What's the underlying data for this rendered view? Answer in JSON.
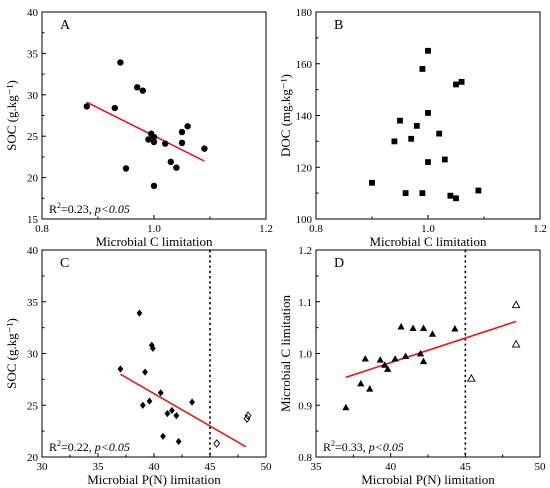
{
  "chart_data": [
    {
      "panel": "A",
      "type": "scatter",
      "xlabel": "Microbial C limitation",
      "ylabel": "SOC (g.kg⁻¹)",
      "xlim": [
        0.8,
        1.2
      ],
      "ylim": [
        15,
        40
      ],
      "xticks": [
        "0.8",
        "1.0",
        "1.2"
      ],
      "yticks": [
        "15",
        "20",
        "25",
        "30",
        "35",
        "40"
      ],
      "marker": "filled-circle",
      "points": [
        [
          0.88,
          28.6
        ],
        [
          0.93,
          28.4
        ],
        [
          0.94,
          33.9
        ],
        [
          0.95,
          21.1
        ],
        [
          0.97,
          30.9
        ],
        [
          0.98,
          30.5
        ],
        [
          0.99,
          24.6
        ],
        [
          0.995,
          25.3
        ],
        [
          1.0,
          24.9
        ],
        [
          1.0,
          24.3
        ],
        [
          1.0,
          19.0
        ],
        [
          1.02,
          24.1
        ],
        [
          1.03,
          21.9
        ],
        [
          1.04,
          21.2
        ],
        [
          1.05,
          24.2
        ],
        [
          1.05,
          25.5
        ],
        [
          1.06,
          26.2
        ],
        [
          1.09,
          23.5
        ]
      ],
      "fit": {
        "x": [
          0.88,
          1.09
        ],
        "y": [
          29.1,
          22.0
        ],
        "color": "#e41a1c"
      },
      "stat_r2": "0.23",
      "stat_p": "p<0.05"
    },
    {
      "panel": "B",
      "type": "scatter",
      "xlabel": "Microbial C limitation",
      "ylabel": "DOC (mg.kg⁻¹)",
      "xlim": [
        0.8,
        1.2
      ],
      "ylim": [
        100,
        180
      ],
      "xticks": [
        "0.8",
        "1.0",
        "1.2"
      ],
      "yticks": [
        "100",
        "120",
        "140",
        "160",
        "180"
      ],
      "marker": "filled-square",
      "points": [
        [
          0.9,
          114
        ],
        [
          0.94,
          130
        ],
        [
          0.95,
          138
        ],
        [
          0.96,
          110
        ],
        [
          0.97,
          131
        ],
        [
          0.98,
          136
        ],
        [
          0.99,
          110
        ],
        [
          0.99,
          158
        ],
        [
          1.0,
          122
        ],
        [
          1.0,
          141
        ],
        [
          1.0,
          165
        ],
        [
          1.02,
          133
        ],
        [
          1.03,
          123
        ],
        [
          1.04,
          109
        ],
        [
          1.05,
          108
        ],
        [
          1.05,
          152
        ],
        [
          1.06,
          153
        ],
        [
          1.09,
          111
        ]
      ]
    },
    {
      "panel": "C",
      "type": "scatter",
      "xlabel": "Microbial P(N) limitation",
      "ylabel": "SOC (g.kg⁻¹)",
      "xlim": [
        30,
        50
      ],
      "ylim": [
        20,
        40
      ],
      "xticks": [
        "30",
        "35",
        "40",
        "45",
        "50"
      ],
      "yticks": [
        "20",
        "25",
        "30",
        "35",
        "40"
      ],
      "marker": "filled-diamond",
      "points": [
        [
          37.0,
          28.5
        ],
        [
          38.7,
          33.9
        ],
        [
          39.0,
          25.0
        ],
        [
          39.2,
          28.2
        ],
        [
          39.6,
          25.4
        ],
        [
          39.8,
          30.8
        ],
        [
          39.9,
          30.5
        ],
        [
          40.6,
          26.2
        ],
        [
          40.8,
          22.0
        ],
        [
          41.2,
          24.2
        ],
        [
          41.6,
          24.5
        ],
        [
          42.0,
          24.0
        ],
        [
          42.2,
          21.5
        ],
        [
          43.4,
          25.3
        ]
      ],
      "open_points": [
        [
          45.6,
          21.3
        ],
        [
          48.3,
          23.7
        ],
        [
          48.4,
          24.0
        ]
      ],
      "fit": {
        "x": [
          37.0,
          48.2
        ],
        "y": [
          28.0,
          21.0
        ],
        "color": "#e41a1c"
      },
      "vline": 45,
      "stat_r2": "0.22",
      "stat_p": "p<0.05"
    },
    {
      "panel": "D",
      "type": "scatter",
      "xlabel": "Microbial P(N) limitation",
      "ylabel": "Microbial C limitation",
      "xlim": [
        35,
        50
      ],
      "ylim": [
        0.8,
        1.2
      ],
      "xticks": [
        "35",
        "40",
        "45",
        "50"
      ],
      "yticks": [
        "0.8",
        "0.9",
        "1.0",
        "1.1",
        "1.2"
      ],
      "marker": "filled-triangle",
      "points": [
        [
          37.0,
          0.896
        ],
        [
          38.0,
          0.942
        ],
        [
          38.3,
          0.99
        ],
        [
          38.6,
          0.932
        ],
        [
          39.3,
          0.988
        ],
        [
          39.6,
          0.978
        ],
        [
          39.8,
          0.97
        ],
        [
          40.3,
          0.99
        ],
        [
          40.7,
          1.052
        ],
        [
          41.0,
          0.995
        ],
        [
          41.5,
          1.049
        ],
        [
          42.0,
          1.0
        ],
        [
          42.2,
          1.049
        ],
        [
          42.2,
          0.985
        ],
        [
          42.8,
          1.038
        ],
        [
          44.3,
          1.048
        ]
      ],
      "open_points": [
        [
          45.4,
          0.952
        ],
        [
          48.4,
          1.094
        ],
        [
          48.4,
          1.018
        ]
      ],
      "fit": {
        "x": [
          37.0,
          48.4
        ],
        "y": [
          0.954,
          1.062
        ],
        "color": "#e41a1c"
      },
      "vline": 45,
      "stat_r2": "0.33",
      "stat_p": "p<0.05"
    }
  ]
}
